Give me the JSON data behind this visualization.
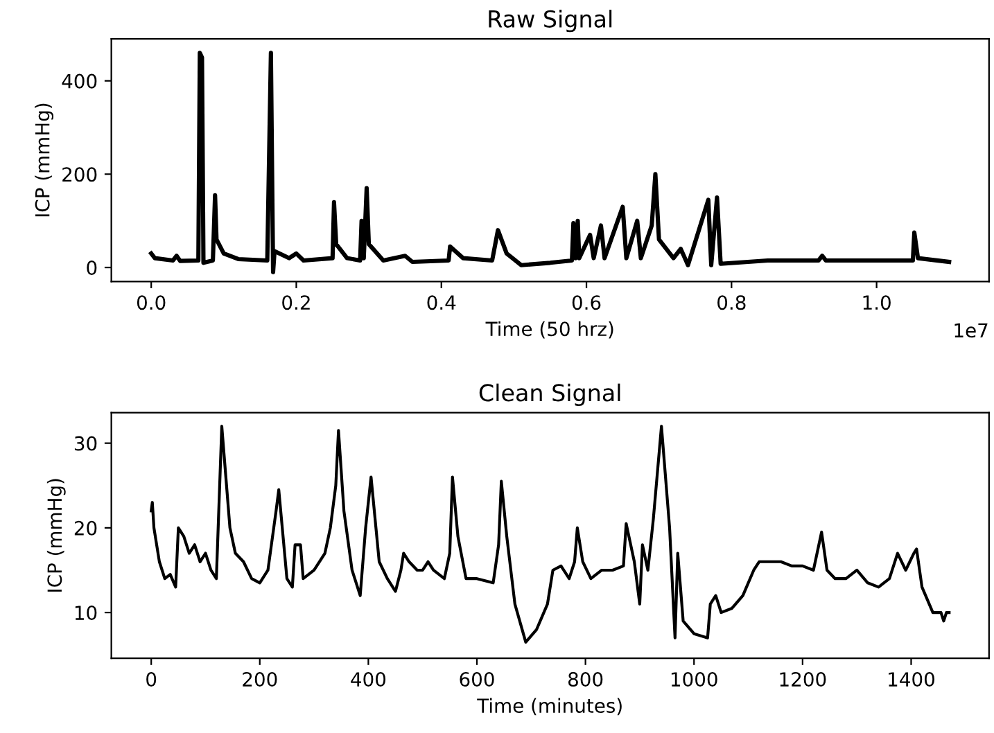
{
  "chart_data": [
    {
      "type": "line",
      "title": "Raw Signal",
      "xlabel": "Time (50 hrz)",
      "ylabel": "ICP (mmHg)",
      "annotations": [
        "1e7"
      ],
      "x": [
        0,
        0.005,
        0.03,
        0.035,
        0.04,
        0.065,
        0.067,
        0.07,
        0.072,
        0.085,
        0.088,
        0.09,
        0.1,
        0.12,
        0.16,
        0.165,
        0.168,
        0.17,
        0.19,
        0.2,
        0.21,
        0.25,
        0.252,
        0.255,
        0.27,
        0.288,
        0.29,
        0.293,
        0.297,
        0.3,
        0.32,
        0.35,
        0.36,
        0.41,
        0.412,
        0.43,
        0.47,
        0.478,
        0.49,
        0.51,
        0.55,
        0.58,
        0.582,
        0.585,
        0.588,
        0.59,
        0.605,
        0.61,
        0.62,
        0.625,
        0.65,
        0.655,
        0.67,
        0.675,
        0.69,
        0.695,
        0.7,
        0.72,
        0.73,
        0.74,
        0.768,
        0.772,
        0.78,
        0.785,
        0.85,
        0.92,
        0.925,
        0.93,
        1.0,
        1.05,
        1.052,
        1.057,
        1.1
      ],
      "series": [
        {
          "color": "#000000",
          "values": [
            30,
            20,
            15,
            25,
            14,
            15,
            460,
            450,
            10,
            15,
            155,
            60,
            30,
            18,
            15,
            460,
            -10,
            35,
            20,
            30,
            15,
            20,
            140,
            50,
            20,
            15,
            100,
            20,
            170,
            50,
            15,
            25,
            12,
            15,
            45,
            20,
            15,
            80,
            30,
            5,
            10,
            15,
            95,
            20,
            100,
            20,
            70,
            20,
            90,
            20,
            130,
            20,
            100,
            20,
            90,
            200,
            60,
            20,
            40,
            5,
            145,
            5,
            150,
            8,
            15,
            15,
            25,
            15,
            15,
            15,
            75,
            20,
            12
          ]
        }
      ],
      "xlim": [
        -0.055,
        1.155
      ],
      "xticks": [
        {
          "value": 0,
          "label": "0.0"
        },
        0.2,
        0.4,
        0.6,
        0.8,
        {
          "value": 1,
          "label": "1.0"
        }
      ],
      "ylim": [
        -30,
        490
      ],
      "yticks": [
        0,
        200,
        400
      ],
      "grid": false,
      "legend": false
    },
    {
      "type": "line",
      "title": "Clean Signal",
      "xlabel": "Time (minutes)",
      "ylabel": "ICP (mmHg)",
      "x": [
        0,
        2,
        5,
        15,
        25,
        35,
        45,
        50,
        60,
        70,
        80,
        90,
        100,
        110,
        120,
        130,
        145,
        155,
        170,
        185,
        200,
        215,
        230,
        235,
        250,
        260,
        265,
        275,
        280,
        300,
        320,
        330,
        340,
        345,
        355,
        370,
        385,
        395,
        405,
        420,
        435,
        450,
        460,
        465,
        475,
        490,
        500,
        510,
        520,
        540,
        550,
        555,
        565,
        580,
        600,
        630,
        640,
        645,
        655,
        670,
        690,
        710,
        730,
        740,
        755,
        770,
        780,
        785,
        795,
        810,
        830,
        850,
        870,
        875,
        890,
        900,
        905,
        915,
        925,
        940,
        955,
        965,
        970,
        980,
        1000,
        1025,
        1030,
        1040,
        1050,
        1070,
        1090,
        1110,
        1120,
        1140,
        1160,
        1180,
        1200,
        1220,
        1235,
        1245,
        1260,
        1280,
        1300,
        1320,
        1340,
        1360,
        1375,
        1390,
        1405,
        1410,
        1420,
        1440,
        1455,
        1460,
        1465,
        1470
      ],
      "series": [
        {
          "color": "#000000",
          "values": [
            22,
            23,
            20,
            16,
            14,
            14.5,
            13,
            20,
            19,
            17,
            18,
            16,
            17,
            15,
            14,
            32,
            20,
            17,
            16,
            14,
            13.5,
            15,
            22,
            24.5,
            14,
            13,
            18,
            18,
            14,
            15,
            17,
            20,
            25,
            31.5,
            22,
            15,
            12,
            20,
            26,
            16,
            14,
            12.5,
            15,
            17,
            16,
            15,
            15,
            16,
            15,
            14,
            17,
            26,
            19,
            14,
            14,
            13.5,
            18,
            25.5,
            19,
            11,
            6.5,
            8,
            11,
            15,
            15.5,
            14,
            16,
            20,
            16,
            14,
            15,
            15,
            15.5,
            20.5,
            16,
            11,
            18,
            15,
            21,
            32,
            20,
            7,
            17,
            9,
            7.5,
            7,
            11,
            12,
            10,
            10.5,
            12,
            15,
            16,
            16,
            16,
            15.5,
            15.5,
            15,
            19.5,
            15,
            14,
            14,
            15,
            13.5,
            13,
            14,
            17,
            15,
            17,
            17.5,
            13,
            10,
            10,
            9,
            10,
            10
          ]
        }
      ],
      "xlim": [
        -73.5,
        1543.5
      ],
      "xticks": [
        0,
        200,
        400,
        600,
        800,
        1000,
        1200,
        1400
      ],
      "ylim": [
        4.6,
        33.6
      ],
      "yticks": [
        10,
        20,
        30
      ],
      "grid": false,
      "legend": false
    }
  ]
}
